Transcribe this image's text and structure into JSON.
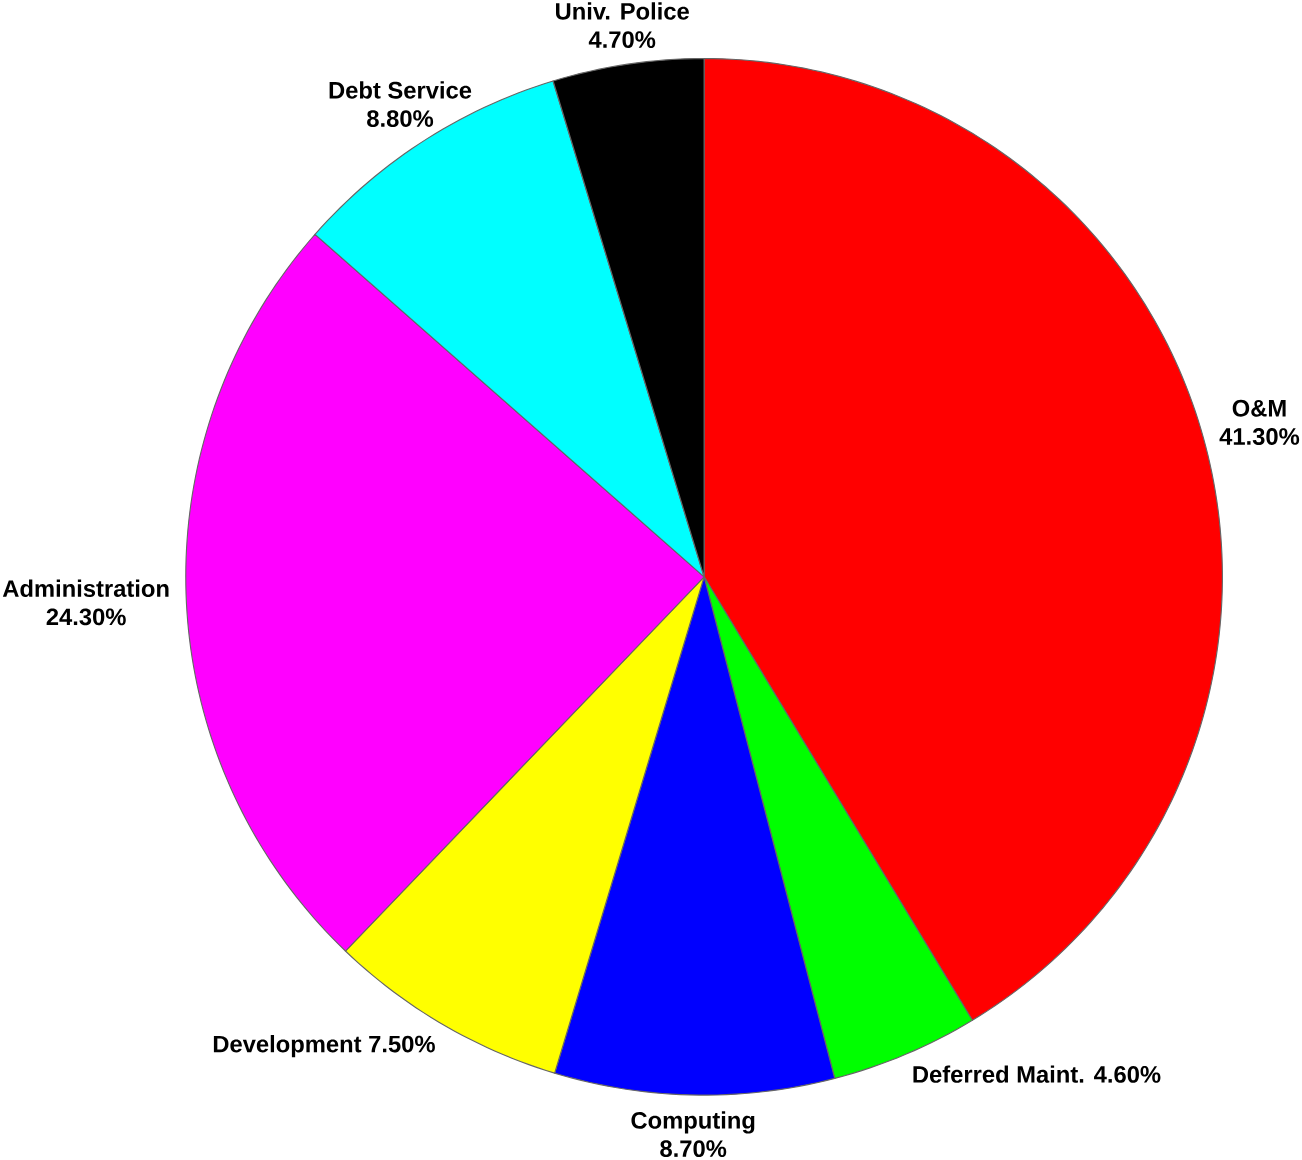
{
  "chart_data": {
    "type": "pie",
    "categories": [
      "O&M",
      "Deferred Maint.",
      "Computing",
      "Development",
      "Administration",
      "Debt Service",
      "Univ. Police"
    ],
    "values": [
      41.3,
      4.6,
      8.7,
      7.5,
      24.3,
      8.8,
      4.7
    ],
    "colors": [
      "#ff0000",
      "#00ff00",
      "#0000ff",
      "#ffff00",
      "#ff00ff",
      "#00ffff",
      "#000000"
    ],
    "value_labels": [
      "41.30%",
      "4.60%",
      "8.70%",
      "7.50%",
      "24.30%",
      "8.80%",
      "4.70%"
    ]
  }
}
